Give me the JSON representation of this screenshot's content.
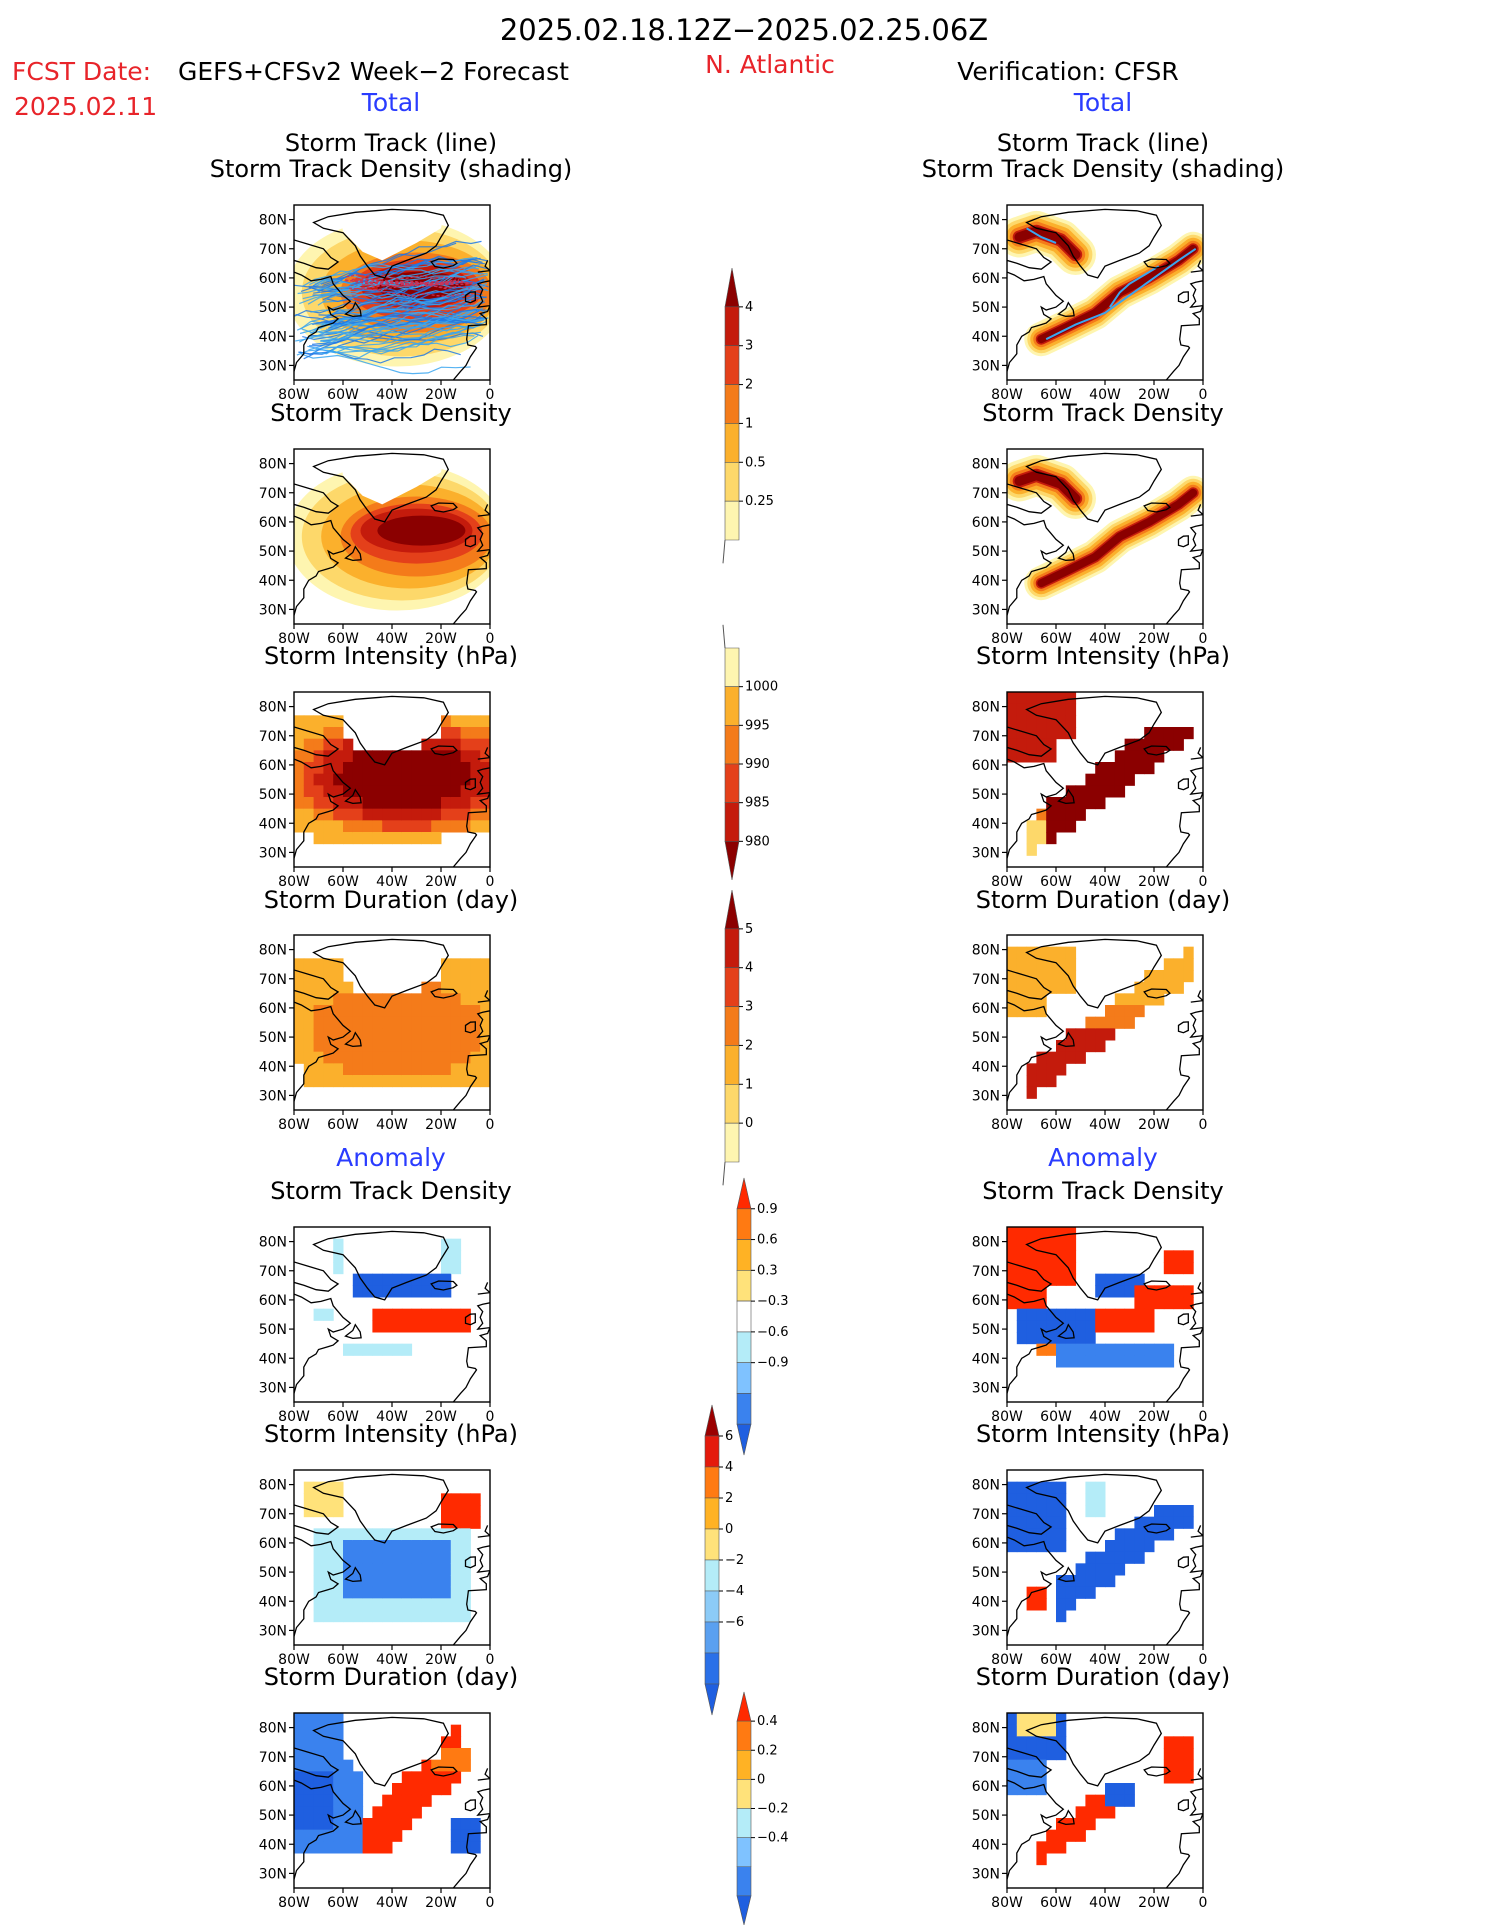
{
  "header": {
    "period": "2025.02.18.12Z−2025.02.25.06Z",
    "fcst_date_label": "FCST Date:",
    "fcst_date_value": "2025.02.11",
    "forecast_name": "GEFS+CFSv2 Week−2 Forecast",
    "region": "N. Atlantic",
    "verification": "Verification: CFSR",
    "left_total": "Total",
    "right_total": "Total",
    "left_anomaly": "Anomaly",
    "right_anomaly": "Anomaly"
  },
  "colors": {
    "title_red": "#e8242a",
    "blue_label": "#2a3cff",
    "track_line": "#3aa6f0",
    "track_line_fcst": "#1e78e6",
    "storm_tracks_mean": "#c8345a"
  },
  "icons": {
    "coastline": "coastline-map-icon",
    "colorbar_arrow": "triangle-arrow-icon"
  },
  "panel_axes": {
    "x_ticks": [
      "80W",
      "60W",
      "40W",
      "20W",
      "0"
    ],
    "y_ticks": [
      "80N",
      "70N",
      "60N",
      "50N",
      "40N",
      "30N"
    ]
  },
  "panels_total": [
    {
      "title": [
        "Storm Track (line)",
        "Storm Track Density (shading)"
      ]
    },
    {
      "title": [
        "Storm Track Density"
      ]
    },
    {
      "title": [
        "Storm Intensity (hPa)"
      ]
    },
    {
      "title": [
        "Storm Duration (day)"
      ]
    }
  ],
  "panels_anomaly": [
    {
      "title": [
        "Storm Track Density"
      ]
    },
    {
      "title": [
        "Storm Intensity (hPa)"
      ]
    },
    {
      "title": [
        "Storm Duration (day)"
      ]
    }
  ],
  "colorbars": [
    {
      "id": "density",
      "labels": [
        "4",
        "3",
        "2",
        "1",
        "0.5",
        "0.25"
      ],
      "colors": [
        "#8b0000",
        "#c41b0c",
        "#e4401a",
        "#f47b1a",
        "#fbb02c",
        "#fdd86a",
        "#fef5b0"
      ],
      "arrows": "top"
    },
    {
      "id": "intensity",
      "labels": [
        "1000",
        "995",
        "990",
        "985",
        "980"
      ],
      "colors": [
        "#fef5b0",
        "#fbb02c",
        "#f47b1a",
        "#e4401a",
        "#c41b0c",
        "#8b0000"
      ],
      "arrows": "bottom"
    },
    {
      "id": "duration",
      "labels": [
        "5",
        "4",
        "3",
        "2",
        "1",
        "0"
      ],
      "colors": [
        "#8b0000",
        "#c41b0c",
        "#e4401a",
        "#f47b1a",
        "#fbb02c",
        "#fdd86a",
        "#fef5b0"
      ],
      "arrows": "top"
    },
    {
      "id": "density_anom",
      "labels": [
        "0.9",
        "0.6",
        "0.3",
        "−0.3",
        "−0.6",
        "−0.9"
      ],
      "colors": [
        "#ff2a00",
        "#ff7a12",
        "#ffb224",
        "#ffe27a",
        "#ffffff",
        "#b4ecf8",
        "#7fc2ff",
        "#3a82ee",
        "#1f5fe0"
      ],
      "arrows": "both"
    },
    {
      "id": "intensity_anom",
      "labels": [
        "6",
        "4",
        "2",
        "0",
        "−2",
        "−4",
        "−6"
      ],
      "colors": [
        "#9b0000",
        "#e41a0c",
        "#ff7a12",
        "#ffb224",
        "#ffe27a",
        "#b4ecf8",
        "#8ccbf7",
        "#5aa0f0",
        "#2a70e8",
        "#1f5fe0"
      ],
      "arrows": "both"
    },
    {
      "id": "duration_anom",
      "labels": [
        "0.4",
        "0.2",
        "0",
        "−0.2",
        "−0.4"
      ],
      "colors": [
        "#ff2a00",
        "#ff7a12",
        "#ffb224",
        "#ffe27a",
        "#b4ecf8",
        "#7fc2ff",
        "#3a82ee",
        "#1f5fe0"
      ],
      "arrows": "both"
    }
  ],
  "chart_data": [
    {
      "type": "heatmap",
      "title": "Storm Track (line) / Storm Track Density (shading)",
      "panel": "Total forecast",
      "xlim": [
        -80,
        0
      ],
      "ylim": [
        25,
        85
      ],
      "note": "GEFS+CFSv2 ensemble tracks over dense storm track field"
    },
    {
      "type": "heatmap",
      "title": "Storm Track Density",
      "panel": "Total forecast",
      "xlim": [
        -80,
        0
      ],
      "ylim": [
        25,
        85
      ],
      "max_center": [
        -30,
        56
      ],
      "max_value": 4
    },
    {
      "type": "heatmap",
      "title": "Storm Intensity (hPa)",
      "panel": "Total forecast",
      "xlim": [
        -80,
        0
      ],
      "ylim": [
        25,
        85
      ],
      "min_value": 980
    },
    {
      "type": "heatmap",
      "title": "Storm Duration (day)",
      "panel": "Total forecast",
      "xlim": [
        -80,
        0
      ],
      "ylim": [
        25,
        85
      ],
      "typical_value": 3
    },
    {
      "type": "heatmap",
      "title": "Storm Track (line) / Storm Track Density (shading)",
      "panel": "Total verification",
      "xlim": [
        -80,
        0
      ],
      "ylim": [
        25,
        85
      ]
    },
    {
      "type": "heatmap",
      "title": "Storm Track Density",
      "panel": "Total verification",
      "xlim": [
        -80,
        0
      ],
      "ylim": [
        25,
        85
      ],
      "max_value": 4
    },
    {
      "type": "heatmap",
      "title": "Storm Intensity (hPa)",
      "panel": "Total verification",
      "xlim": [
        -80,
        0
      ],
      "ylim": [
        25,
        85
      ],
      "min_value": 980
    },
    {
      "type": "heatmap",
      "title": "Storm Duration (day)",
      "panel": "Total verification",
      "xlim": [
        -80,
        0
      ],
      "ylim": [
        25,
        85
      ],
      "max_value": 5
    },
    {
      "type": "heatmap",
      "title": "Storm Track Density",
      "panel": "Anomaly forecast",
      "xlim": [
        -80,
        0
      ],
      "ylim": [
        25,
        85
      ]
    },
    {
      "type": "heatmap",
      "title": "Storm Intensity (hPa)",
      "panel": "Anomaly forecast",
      "xlim": [
        -80,
        0
      ],
      "ylim": [
        25,
        85
      ]
    },
    {
      "type": "heatmap",
      "title": "Storm Duration (day)",
      "panel": "Anomaly forecast",
      "xlim": [
        -80,
        0
      ],
      "ylim": [
        25,
        85
      ]
    },
    {
      "type": "heatmap",
      "title": "Storm Track Density",
      "panel": "Anomaly verification",
      "xlim": [
        -80,
        0
      ],
      "ylim": [
        25,
        85
      ]
    },
    {
      "type": "heatmap",
      "title": "Storm Intensity (hPa)",
      "panel": "Anomaly verification",
      "xlim": [
        -80,
        0
      ],
      "ylim": [
        25,
        85
      ]
    },
    {
      "type": "heatmap",
      "title": "Storm Duration (day)",
      "panel": "Anomaly verification",
      "xlim": [
        -80,
        0
      ],
      "ylim": [
        25,
        85
      ]
    }
  ]
}
